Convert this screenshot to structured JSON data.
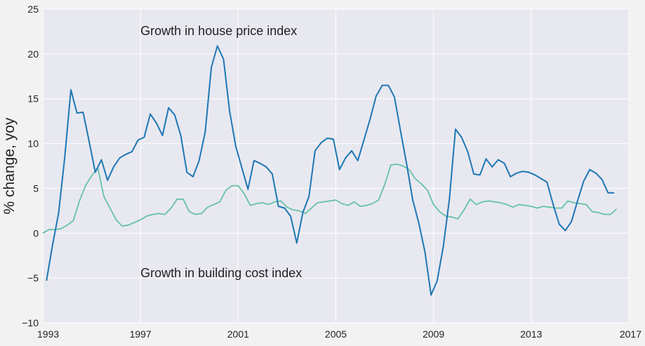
{
  "chart_data": {
    "type": "line",
    "title": "",
    "xlabel": "",
    "ylabel": "% change, yoy",
    "xlim": [
      1993,
      2017
    ],
    "ylim": [
      -10,
      25
    ],
    "x_ticks": [
      "1993",
      "1997",
      "2001",
      "2005",
      "2009",
      "2013",
      "2017"
    ],
    "y_ticks": [
      "−10",
      "−5",
      "0",
      "5",
      "10",
      "15",
      "20",
      "25"
    ],
    "grid": true,
    "legend": "none",
    "annotations": [
      {
        "text": "Growth in house price index",
        "x": 1997,
        "y": 22.1
      },
      {
        "text": "Growth in building cost index",
        "x": 1997,
        "y": -4.9
      }
    ],
    "series": [
      {
        "color": "#1f77b4",
        "x": [
          1993.15,
          1993.4,
          1993.65,
          1993.9,
          1994.15,
          1994.4,
          1994.65,
          1994.9,
          1995.15,
          1995.4,
          1995.65,
          1995.9,
          1996.15,
          1996.4,
          1996.65,
          1996.9,
          1997.15,
          1997.4,
          1997.65,
          1997.9,
          1998.15,
          1998.4,
          1998.65,
          1998.9,
          1999.15,
          1999.4,
          1999.65,
          1999.9,
          2000.15,
          2000.4,
          2000.65,
          2000.9,
          2001.15,
          2001.4,
          2001.65,
          2001.9,
          2002.15,
          2002.4,
          2002.65,
          2002.9,
          2003.15,
          2003.4,
          2003.65,
          2003.9,
          2004.15,
          2004.4,
          2004.65,
          2004.9,
          2005.15,
          2005.4,
          2005.65,
          2005.9,
          2006.15,
          2006.4,
          2006.65,
          2006.9,
          2007.15,
          2007.4,
          2007.65,
          2007.9,
          2008.15,
          2008.4,
          2008.65,
          2008.9,
          2009.15,
          2009.4,
          2009.65,
          2009.9,
          2010.15,
          2010.4,
          2010.65,
          2010.9,
          2011.15,
          2011.4,
          2011.65,
          2011.9,
          2012.15,
          2012.4,
          2012.65,
          2012.9,
          2013.15,
          2013.4,
          2013.65,
          2013.9,
          2014.15,
          2014.4,
          2014.65,
          2014.9,
          2015.15,
          2015.4,
          2015.65,
          2015.9,
          2016.15,
          2016.4
        ],
        "values": [
          -5.3,
          -1.3,
          2.3,
          8.5,
          16.0,
          13.4,
          13.5,
          10.2,
          6.8,
          8.2,
          5.9,
          7.4,
          8.4,
          8.8,
          9.1,
          10.4,
          10.7,
          13.3,
          12.3,
          10.9,
          14.0,
          13.2,
          10.9,
          6.8,
          6.3,
          8.1,
          11.3,
          18.5,
          20.9,
          19.4,
          13.6,
          9.7,
          7.3,
          4.9,
          8.1,
          7.8,
          7.4,
          6.6,
          3.0,
          2.8,
          1.9,
          -1.1,
          2.3,
          4.1,
          9.2,
          10.1,
          10.6,
          10.5,
          7.1,
          8.4,
          9.2,
          8.1,
          10.4,
          12.7,
          15.3,
          16.5,
          16.5,
          15.2,
          11.4,
          7.7,
          3.7,
          1.1,
          -2.1,
          -6.9,
          -5.3,
          -1.5,
          3.8,
          11.6,
          10.7,
          9.1,
          6.6,
          6.5,
          8.3,
          7.4,
          8.2,
          7.8,
          6.3,
          6.7,
          6.9,
          6.8,
          6.5,
          6.1,
          5.7,
          3.2,
          1.0,
          0.3,
          1.3,
          3.6,
          5.8,
          7.1,
          6.7,
          6.0,
          4.5,
          4.5
        ]
      },
      {
        "color": "#66c2a5",
        "x": [
          1993.0,
          1993.25,
          1993.5,
          1993.75,
          1994.0,
          1994.25,
          1994.5,
          1994.75,
          1995.0,
          1995.25,
          1995.5,
          1995.75,
          1996.0,
          1996.25,
          1996.5,
          1996.75,
          1997.0,
          1997.25,
          1997.5,
          1997.75,
          1998.0,
          1998.25,
          1998.5,
          1998.75,
          1999.0,
          1999.25,
          1999.5,
          1999.75,
          2000.0,
          2000.25,
          2000.5,
          2000.75,
          2001.0,
          2001.25,
          2001.5,
          2001.75,
          2002.0,
          2002.25,
          2002.5,
          2002.75,
          2003.0,
          2003.25,
          2003.5,
          2003.75,
          2004.0,
          2004.25,
          2004.5,
          2004.75,
          2005.0,
          2005.25,
          2005.5,
          2005.75,
          2006.0,
          2006.25,
          2006.5,
          2006.75,
          2007.0,
          2007.25,
          2007.5,
          2007.75,
          2008.0,
          2008.25,
          2008.5,
          2008.75,
          2009.0,
          2009.25,
          2009.5,
          2009.75,
          2010.0,
          2010.25,
          2010.5,
          2010.75,
          2011.0,
          2011.25,
          2011.5,
          2011.75,
          2012.0,
          2012.25,
          2012.5,
          2012.75,
          2013.0,
          2013.25,
          2013.5,
          2013.75,
          2014.0,
          2014.25,
          2014.5,
          2014.75,
          2015.0,
          2015.25,
          2015.5,
          2015.75,
          2016.0,
          2016.25,
          2016.5
        ],
        "values": [
          0.0,
          0.4,
          0.4,
          0.5,
          0.9,
          1.4,
          3.6,
          5.3,
          6.4,
          7.3,
          4.1,
          2.8,
          1.5,
          0.8,
          0.9,
          1.2,
          1.5,
          1.9,
          2.1,
          2.2,
          2.1,
          2.8,
          3.8,
          3.8,
          2.4,
          2.1,
          2.2,
          2.9,
          3.2,
          3.5,
          4.8,
          5.3,
          5.3,
          4.4,
          3.1,
          3.3,
          3.4,
          3.2,
          3.5,
          3.6,
          2.9,
          2.6,
          2.5,
          2.2,
          2.8,
          3.4,
          3.5,
          3.6,
          3.7,
          3.3,
          3.1,
          3.5,
          3.0,
          3.1,
          3.3,
          3.7,
          5.4,
          7.6,
          7.7,
          7.5,
          7.1,
          6.1,
          5.5,
          4.8,
          3.2,
          2.4,
          1.9,
          1.8,
          1.6,
          2.6,
          3.8,
          3.2,
          3.5,
          3.6,
          3.5,
          3.4,
          3.2,
          2.9,
          3.2,
          3.1,
          3.0,
          2.8,
          3.0,
          2.9,
          2.8,
          2.8,
          3.6,
          3.4,
          3.3,
          3.2,
          2.4,
          2.3,
          2.1,
          2.1,
          2.7
        ]
      }
    ]
  }
}
